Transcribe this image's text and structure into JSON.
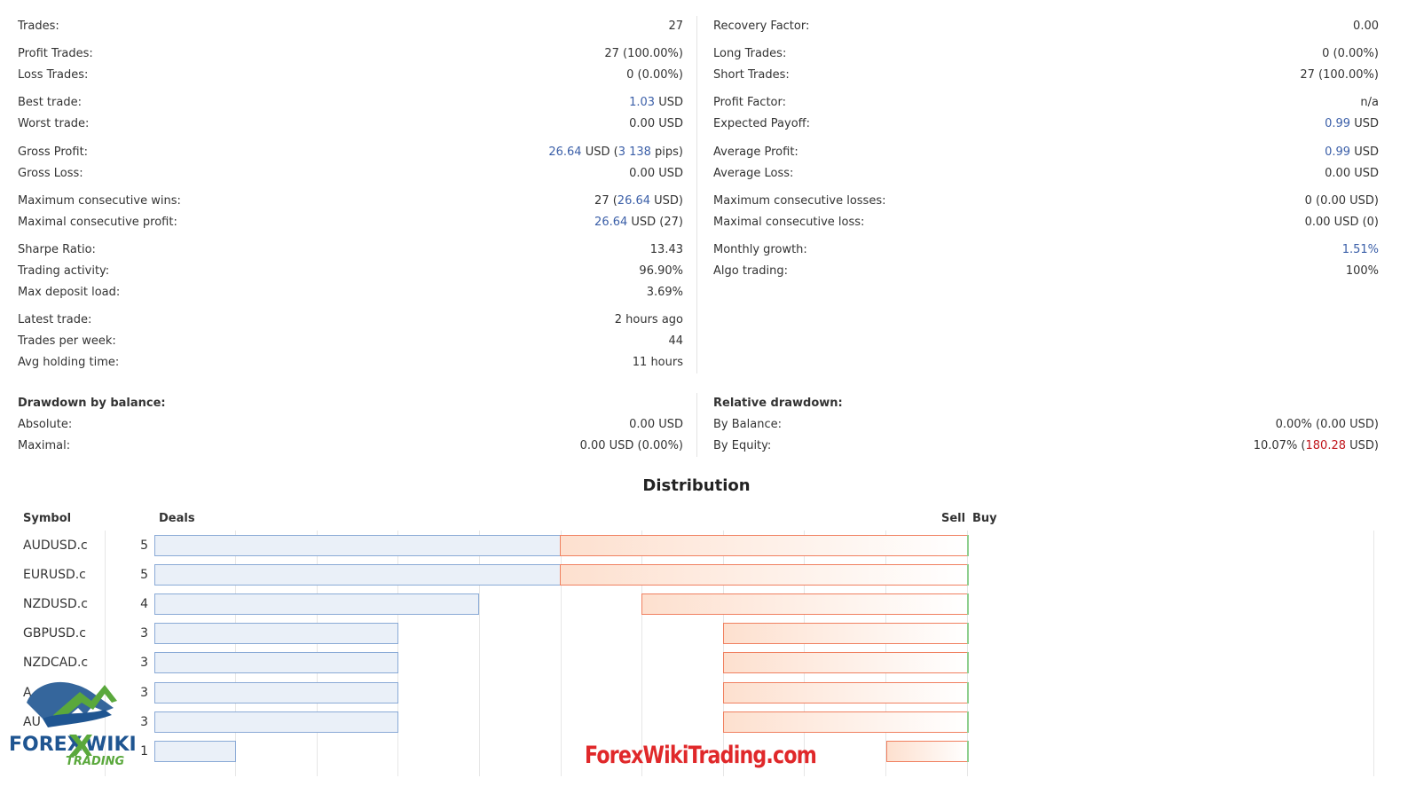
{
  "left_stats": {
    "trades": {
      "label": "Trades:",
      "value": "27"
    },
    "profit_trades": {
      "label": "Profit Trades:",
      "value": "27 (100.00%)"
    },
    "loss_trades": {
      "label": "Loss Trades:",
      "value": "0 (0.00%)"
    },
    "best_trade": {
      "label": "Best trade:",
      "num": "1.03",
      "unit": " USD"
    },
    "worst_trade": {
      "label": "Worst trade:",
      "value": "0.00 USD"
    },
    "gross_profit": {
      "label": "Gross Profit:",
      "num": "26.64",
      "mid": " USD (",
      "pips": "3 138",
      "tail": " pips)"
    },
    "gross_loss": {
      "label": "Gross Loss:",
      "value": "0.00 USD"
    },
    "max_consec_wins": {
      "label": "Maximum consecutive wins:",
      "pre": "27 (",
      "num": "26.64",
      "tail": " USD)"
    },
    "maximal_consec_profit": {
      "label": "Maximal consecutive profit:",
      "num": "26.64",
      "tail": " USD (27)"
    },
    "sharpe": {
      "label": "Sharpe Ratio:",
      "value": "13.43"
    },
    "trading_activity": {
      "label": "Trading activity:",
      "value": "96.90%"
    },
    "max_deposit_load": {
      "label": "Max deposit load:",
      "value": "3.69%"
    },
    "latest_trade": {
      "label": "Latest trade:",
      "value": "2 hours ago"
    },
    "trades_per_week": {
      "label": "Trades per week:",
      "value": "44"
    },
    "avg_holding": {
      "label": "Avg holding time:",
      "value": "11 hours"
    }
  },
  "right_stats": {
    "recovery_factor": {
      "label": "Recovery Factor:",
      "value": "0.00"
    },
    "long_trades": {
      "label": "Long Trades:",
      "value": "0 (0.00%)"
    },
    "short_trades": {
      "label": "Short Trades:",
      "value": "27 (100.00%)"
    },
    "profit_factor": {
      "label": "Profit Factor:",
      "value": "n/a"
    },
    "expected_payoff": {
      "label": "Expected Payoff:",
      "num": "0.99",
      "unit": " USD"
    },
    "average_profit": {
      "label": "Average Profit:",
      "num": "0.99",
      "unit": " USD"
    },
    "average_loss": {
      "label": "Average Loss:",
      "value": "0.00 USD"
    },
    "max_consec_losses": {
      "label": "Maximum consecutive losses:",
      "value": "0 (0.00 USD)"
    },
    "maximal_consec_loss": {
      "label": "Maximal consecutive loss:",
      "value": "0.00 USD (0)"
    },
    "monthly_growth": {
      "label": "Monthly growth:",
      "value": "1.51%"
    },
    "algo_trading": {
      "label": "Algo trading:",
      "value": "100%"
    }
  },
  "drawdown_balance": {
    "heading": "Drawdown by balance:",
    "absolute": {
      "label": "Absolute:",
      "value": "0.00 USD"
    },
    "maximal": {
      "label": "Maximal:",
      "value": "0.00 USD (0.00%)"
    }
  },
  "relative_drawdown": {
    "heading": "Relative drawdown:",
    "by_balance": {
      "label": "By Balance:",
      "value": "0.00% (0.00 USD)"
    },
    "by_equity": {
      "label": "By Equity:",
      "pre": "10.07% (",
      "num": "180.28",
      "tail": " USD)"
    }
  },
  "distribution": {
    "title": "Distribution",
    "col_symbol": "Symbol",
    "col_deals": "Deals",
    "col_sell": "Sell",
    "col_buy": "Buy",
    "rows": [
      {
        "symbol": "AUDUSD.c",
        "deals": "5"
      },
      {
        "symbol": "EURUSD.c",
        "deals": "5"
      },
      {
        "symbol": "NZDUSD.c",
        "deals": "4"
      },
      {
        "symbol": "GBPUSD.c",
        "deals": "3"
      },
      {
        "symbol": "NZDCAD.c",
        "deals": "3"
      },
      {
        "symbol": "A",
        "deals": "3"
      },
      {
        "symbol": "AU",
        "deals": "3"
      },
      {
        "symbol": "",
        "deals": "1"
      }
    ],
    "colors": {
      "deals_fill": "#eaf0f8",
      "deals_border": "#8aaad6",
      "sell_border": "#f08060",
      "buy_border": "#8fcf8f"
    }
  },
  "chart_data": {
    "type": "bar",
    "categories": [
      "AUDUSD.c",
      "EURUSD.c",
      "NZDUSD.c",
      "GBPUSD.c",
      "NZDCAD.c",
      "",
      "",
      ""
    ],
    "series": [
      {
        "name": "Deals",
        "values": [
          5,
          5,
          4,
          3,
          3,
          3,
          3,
          1
        ]
      },
      {
        "name": "Sell",
        "values": [
          5,
          5,
          4,
          3,
          3,
          3,
          3,
          1
        ]
      },
      {
        "name": "Buy",
        "values": [
          0,
          0,
          0,
          0,
          0,
          0,
          0,
          0
        ]
      }
    ],
    "xlim": [
      0,
      5
    ]
  },
  "watermark": "ForexWikiTrading.com",
  "logo": {
    "text_top": "FOREX WIKI",
    "text_bottom": "TRADING",
    "icon": "bull-bear-logo-icon"
  }
}
